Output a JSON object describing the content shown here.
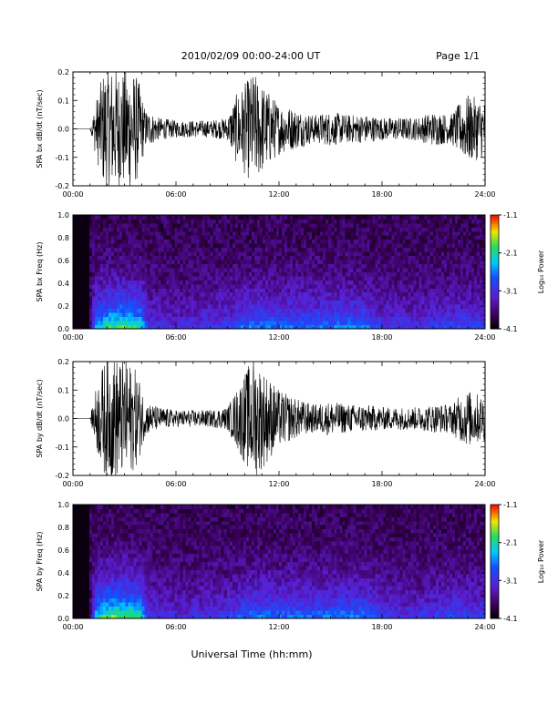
{
  "header": {
    "title": "2010/02/09  00:00-24:00 UT",
    "page": "Page 1/1"
  },
  "footer": {
    "xlabel": "Universal Time (hh:mm)"
  },
  "colorbar_title": "Log₁₀ Power",
  "colorbar_ticks": [
    "-1.1",
    "-2.1",
    "-3.1",
    "-4.1"
  ],
  "chart_data": [
    {
      "type": "line",
      "ylabel": "SPA bx dB/dt (nT/sec)",
      "xlim": [
        0,
        24
      ],
      "ylim": [
        -0.2,
        0.2
      ],
      "x_ticks": [
        "00:00",
        "06:00",
        "12:00",
        "18:00",
        "24:00"
      ],
      "y_ticks": [
        "0.2",
        "0.1",
        "0.0",
        "-0.1",
        "-0.2"
      ],
      "envelope": {
        "hours": [
          0,
          1,
          1.3,
          1.8,
          2.3,
          2.8,
          3.3,
          3.8,
          4.2,
          5,
          6,
          7,
          8,
          9,
          9.5,
          10.5,
          11,
          12,
          13,
          14,
          15,
          16,
          17,
          18,
          19,
          20,
          21,
          22,
          22.5,
          23,
          24
        ],
        "amplitude": [
          0,
          0,
          0.09,
          0.21,
          0.22,
          0.21,
          0.22,
          0.18,
          0.07,
          0.04,
          0.03,
          0.03,
          0.03,
          0.04,
          0.12,
          0.2,
          0.16,
          0.09,
          0.07,
          0.05,
          0.06,
          0.05,
          0.05,
          0.04,
          0.04,
          0.04,
          0.06,
          0.05,
          0.09,
          0.12,
          0.1
        ]
      }
    },
    {
      "type": "heatmap",
      "ylabel": "SPA bx Freq (Hz)",
      "xlim": [
        0,
        24
      ],
      "ylim": [
        0,
        1
      ],
      "x_ticks": [
        "00:00",
        "06:00",
        "12:00",
        "18:00",
        "24:00"
      ],
      "y_ticks": [
        "1.0",
        "0.8",
        "0.6",
        "0.4",
        "0.2",
        "0.0"
      ],
      "color_range": [
        -4.1,
        -1.1
      ],
      "activity": {
        "hours": [
          0,
          1,
          1.3,
          2,
          3,
          4,
          4.3,
          6,
          9,
          10,
          11,
          12,
          14,
          16,
          17,
          18,
          20,
          22,
          23,
          24
        ],
        "level": [
          0,
          0,
          0.7,
          0.9,
          0.95,
          0.85,
          0.4,
          0.3,
          0.4,
          0.55,
          0.6,
          0.55,
          0.55,
          0.6,
          0.55,
          0.4,
          0.35,
          0.45,
          0.45,
          0.4
        ]
      }
    },
    {
      "type": "line",
      "ylabel": "SPA by dB/dt (nT/sec)",
      "xlim": [
        0,
        24
      ],
      "ylim": [
        -0.2,
        0.2
      ],
      "x_ticks": [
        "00:00",
        "06:00",
        "12:00",
        "18:00",
        "24:00"
      ],
      "y_ticks": [
        "0.2",
        "0.1",
        "0.0",
        "-0.1",
        "-0.2"
      ],
      "envelope": {
        "hours": [
          0,
          1,
          1.3,
          1.8,
          2.3,
          2.8,
          3.3,
          3.8,
          4.2,
          5,
          6,
          7,
          8,
          9,
          9.5,
          10.5,
          11,
          12,
          13,
          14,
          15,
          16,
          17,
          18,
          19,
          20,
          21,
          22,
          22.5,
          23,
          24
        ],
        "amplitude": [
          0,
          0,
          0.1,
          0.2,
          0.22,
          0.21,
          0.2,
          0.16,
          0.06,
          0.04,
          0.03,
          0.03,
          0.03,
          0.04,
          0.1,
          0.22,
          0.18,
          0.1,
          0.07,
          0.05,
          0.06,
          0.05,
          0.05,
          0.04,
          0.04,
          0.04,
          0.05,
          0.05,
          0.08,
          0.1,
          0.08
        ]
      }
    },
    {
      "type": "heatmap",
      "ylabel": "SPA by Freq (Hz)",
      "xlim": [
        0,
        24
      ],
      "ylim": [
        0,
        1
      ],
      "x_ticks": [
        "00:00",
        "06:00",
        "12:00",
        "18:00",
        "24:00"
      ],
      "y_ticks": [
        "1.0",
        "0.8",
        "0.6",
        "0.4",
        "0.2",
        "0.0"
      ],
      "color_range": [
        -4.1,
        -1.1
      ],
      "activity": {
        "hours": [
          0,
          1,
          1.3,
          2,
          3,
          4,
          4.3,
          6,
          9,
          10,
          11,
          12,
          14,
          16,
          17,
          18,
          20,
          22,
          23,
          24
        ],
        "level": [
          0,
          0,
          0.75,
          0.95,
          1.0,
          0.85,
          0.4,
          0.3,
          0.4,
          0.55,
          0.6,
          0.55,
          0.55,
          0.6,
          0.6,
          0.4,
          0.35,
          0.45,
          0.45,
          0.4
        ]
      }
    }
  ]
}
